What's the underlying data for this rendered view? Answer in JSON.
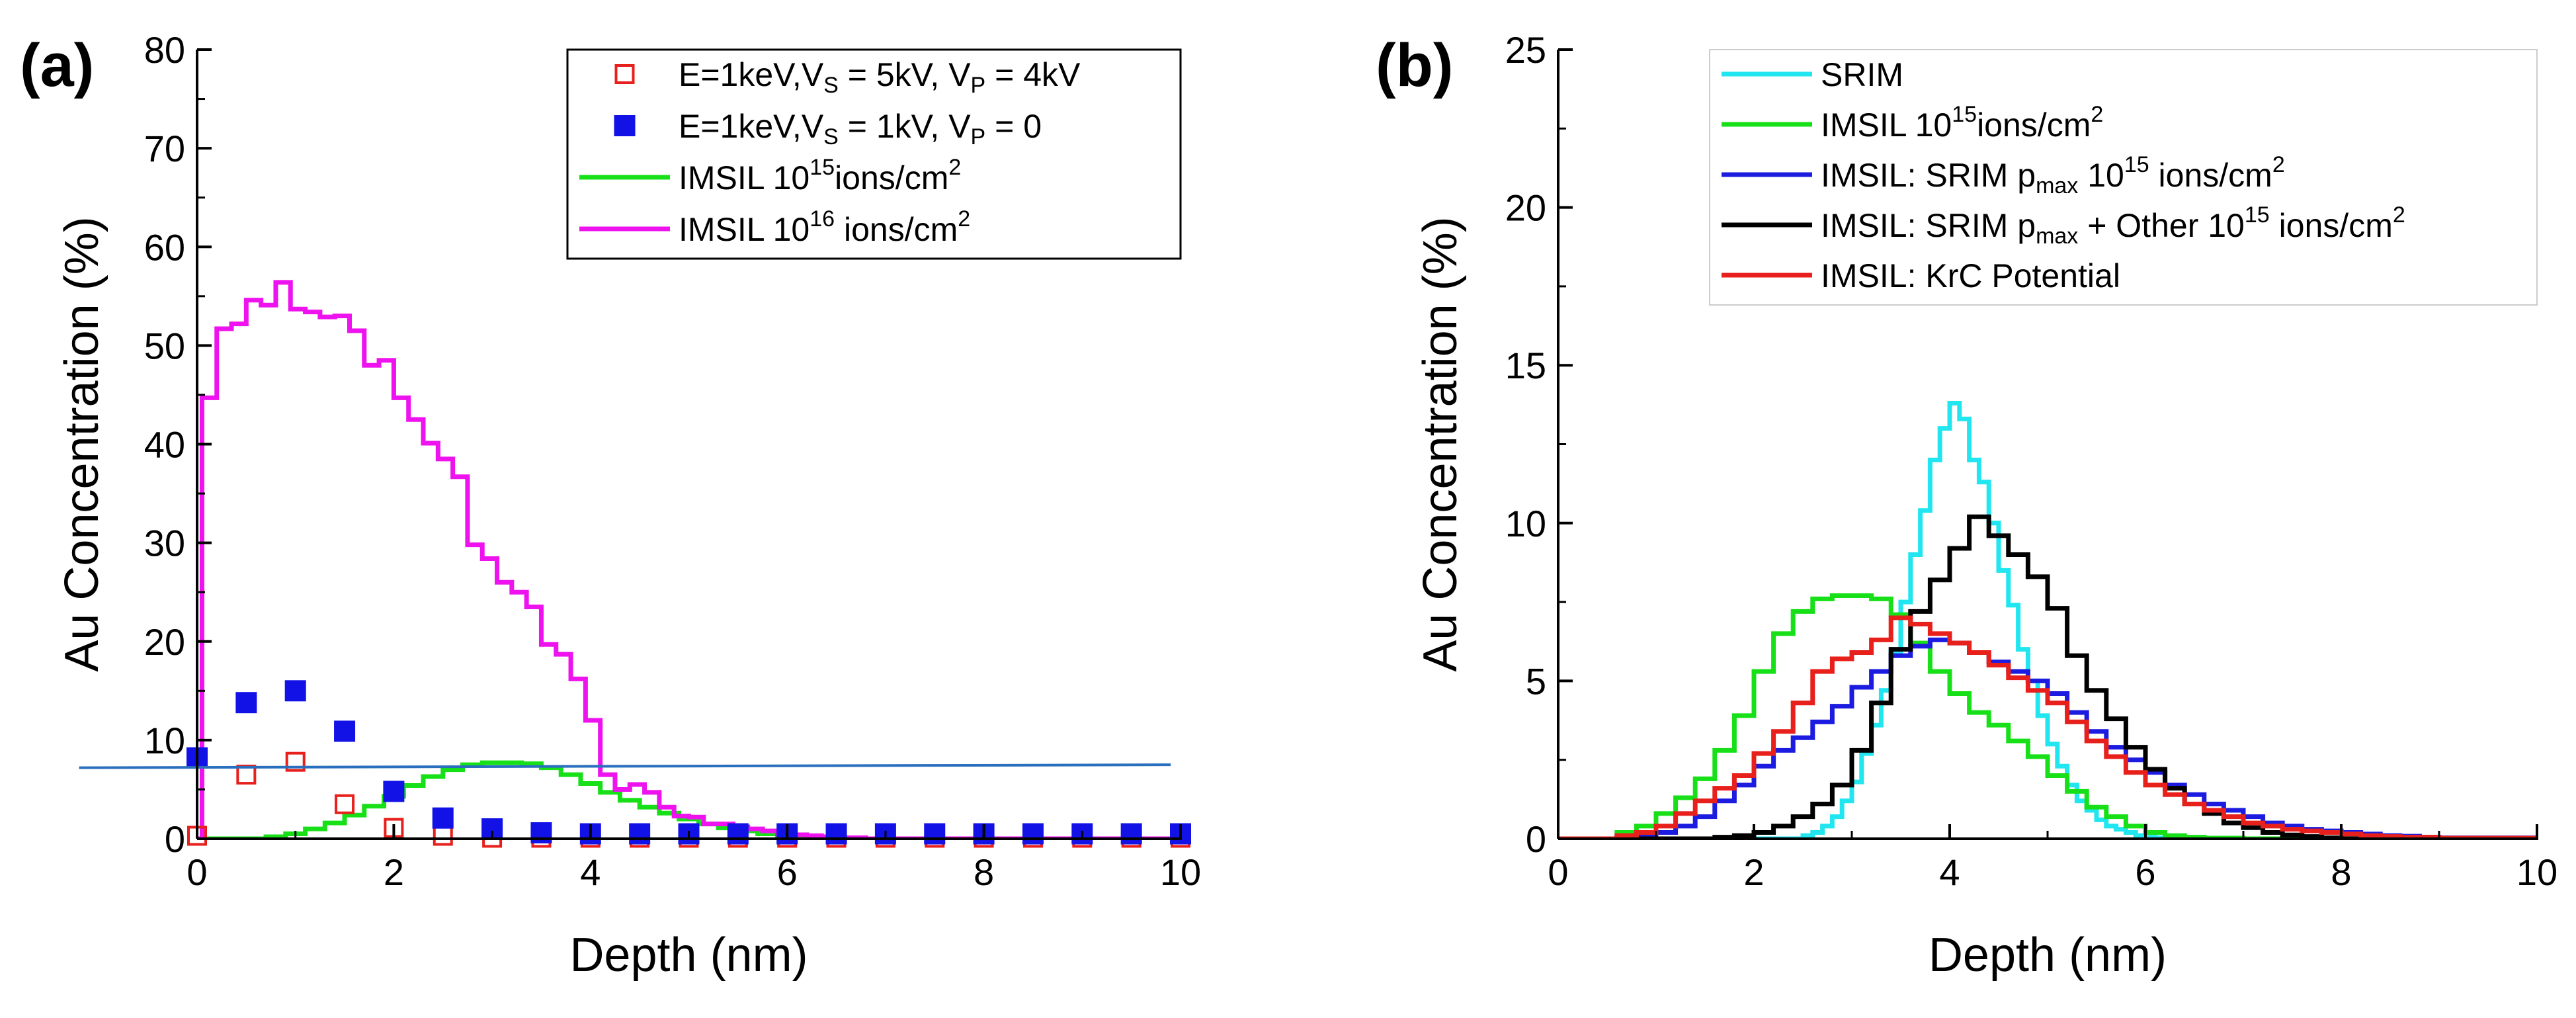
{
  "chart_data": [
    {
      "panel": "(a)",
      "type": "line",
      "xlabel": "Depth (nm)",
      "ylabel": "Au Concentration (%)",
      "xlim": [
        0,
        10
      ],
      "ylim": [
        0,
        80
      ],
      "xticks": [
        "0",
        "2",
        "4",
        "6",
        "8",
        "10"
      ],
      "yticks": [
        "0",
        "10",
        "20",
        "30",
        "40",
        "50",
        "60",
        "70",
        "80"
      ],
      "legend_position": "top-right",
      "legend": [
        {
          "text": "E=1keV,V",
          "sub": "S",
          "text2": " = 5kV, V",
          "sub2": "P",
          "text3": " = 4kV"
        },
        {
          "text": "E=1keV,V",
          "sub": "S",
          "text2": " = 1kV, V",
          "sub2": "P",
          "text3": " = 0"
        },
        {
          "text": "IMSIL 10",
          "sup": "15",
          "text2": "ions/cm",
          "sup2": "2"
        },
        {
          "text": "IMSIL 10",
          "sup": "16",
          "text2": " ions/cm",
          "sup2": "2"
        }
      ],
      "series": [
        {
          "name": "E=1keV,VS = 5kV, VP = 4kV",
          "kind": "scatter-open-square",
          "color": "#e8201c",
          "x": [
            0,
            0.5,
            1.0,
            1.5,
            2.0,
            2.5,
            3.0,
            3.5,
            4.0,
            4.5,
            5.0,
            5.5,
            6.0,
            6.5,
            7.0,
            7.5,
            8.0,
            8.5,
            9.0,
            9.5,
            10.0
          ],
          "y": [
            0.3,
            6.5,
            7.8,
            3.5,
            1.1,
            0.3,
            0.1,
            0.1,
            0.1,
            0.1,
            0.1,
            0.1,
            0.1,
            0.1,
            0.1,
            0.1,
            0.1,
            0.1,
            0.1,
            0.1,
            0.1
          ]
        },
        {
          "name": "E=1keV,VS = 1kV, VP = 0",
          "kind": "scatter-filled-square",
          "color": "#1212e6",
          "x": [
            0,
            0.5,
            1.0,
            1.5,
            2.0,
            2.5,
            3.0,
            3.5,
            4.0,
            4.5,
            5.0,
            5.5,
            6.0,
            6.5,
            7.0,
            7.5,
            8.0,
            8.5,
            9.0,
            9.5,
            10.0
          ],
          "y": [
            8.2,
            13.8,
            15.0,
            10.9,
            4.8,
            2.1,
            1.0,
            0.6,
            0.5,
            0.5,
            0.5,
            0.5,
            0.5,
            0.5,
            0.5,
            0.5,
            0.5,
            0.5,
            0.5,
            0.5,
            0.5
          ]
        },
        {
          "name": "IMSIL 10^15 ions/cm^2",
          "kind": "step",
          "color": "#18e018",
          "x": [
            0,
            0.7,
            0.9,
            1.1,
            1.3,
            1.5,
            1.7,
            1.9,
            2.1,
            2.3,
            2.5,
            2.7,
            2.9,
            3.1,
            3.3,
            3.5,
            3.7,
            3.9,
            4.1,
            4.3,
            4.5,
            4.7,
            4.9,
            5.1,
            5.3,
            5.5,
            5.7,
            5.9,
            6.1,
            6.3,
            6.5
          ],
          "y": [
            0,
            0.2,
            0.5,
            1.0,
            1.6,
            2.4,
            3.3,
            4.3,
            5.4,
            6.3,
            7.0,
            7.5,
            7.7,
            7.7,
            7.6,
            7.2,
            6.5,
            5.6,
            4.7,
            3.9,
            3.2,
            2.6,
            2.0,
            1.5,
            1.1,
            0.8,
            0.5,
            0.3,
            0.2,
            0.1,
            0
          ]
        },
        {
          "name": "IMSIL 10^16 ions/cm^2",
          "kind": "step",
          "color": "#ee12ee",
          "x": [
            0,
            0.05,
            0.2,
            0.35,
            0.5,
            0.65,
            0.8,
            0.95,
            1.1,
            1.25,
            1.4,
            1.55,
            1.7,
            1.85,
            2.0,
            2.15,
            2.3,
            2.45,
            2.6,
            2.75,
            2.9,
            3.05,
            3.2,
            3.35,
            3.5,
            3.65,
            3.8,
            3.95,
            4.1,
            4.25,
            4.4,
            4.55,
            4.7,
            4.85,
            5.0,
            5.15,
            5.3,
            5.45,
            5.6,
            5.75,
            5.9,
            6.05,
            6.2,
            6.35,
            6.5,
            6.65,
            6.8
          ],
          "y": [
            0,
            44.7,
            51.7,
            52.2,
            54.6,
            54.1,
            56.4,
            53.7,
            53.4,
            52.9,
            53.0,
            51.5,
            48.0,
            48.5,
            44.7,
            42.5,
            40.1,
            38.5,
            36.7,
            29.8,
            28.4,
            26.0,
            25.0,
            23.5,
            19.7,
            18.7,
            16.2,
            12.0,
            6.5,
            5.0,
            5.5,
            4.7,
            3.2,
            2.3,
            2.2,
            1.5,
            1.5,
            1.2,
            1.0,
            0.8,
            0.5,
            0.4,
            0.3,
            0.2,
            0.1,
            0.1,
            0
          ]
        },
        {
          "name": "reference line",
          "kind": "line",
          "color": "#2a6fbe",
          "x": [
            -1.2,
            9.9
          ],
          "y": [
            7.2,
            7.5
          ]
        }
      ]
    },
    {
      "panel": "(b)",
      "type": "line",
      "xlabel": "Depth (nm)",
      "ylabel": "Au Concentration (%)",
      "xlim": [
        0,
        10
      ],
      "ylim": [
        0,
        25
      ],
      "xticks": [
        "0",
        "2",
        "4",
        "6",
        "8",
        "10"
      ],
      "yticks": [
        "0",
        "5",
        "10",
        "15",
        "20",
        "25"
      ],
      "legend_position": "top-right",
      "legend": [
        {
          "text": "SRIM"
        },
        {
          "text": "IMSIL 10",
          "sup": "15",
          "text2": "ions/cm",
          "sup2": "2"
        },
        {
          "text": "IMSIL: SRIM p",
          "sub": "max",
          "text2": " 10",
          "sup2": "15",
          "text3": " ions/cm",
          "sup3": "2"
        },
        {
          "text": "IMSIL: SRIM p",
          "sub": "max",
          "text2": " + Other 10",
          "sup2": "15",
          "text3": " ions/cm",
          "sup3": "2"
        },
        {
          "text": "IMSIL: KrC Potential"
        }
      ],
      "series": [
        {
          "name": "SRIM",
          "kind": "step",
          "color": "#21e6f0",
          "x": [
            0,
            2.5,
            2.6,
            2.7,
            2.8,
            2.9,
            3.0,
            3.1,
            3.2,
            3.3,
            3.4,
            3.5,
            3.6,
            3.7,
            3.8,
            3.9,
            4.0,
            4.1,
            4.2,
            4.3,
            4.4,
            4.5,
            4.6,
            4.7,
            4.8,
            4.9,
            5.0,
            5.1,
            5.2,
            5.3,
            5.4,
            5.5,
            5.6,
            5.7,
            5.8,
            5.9,
            6.0,
            6.1,
            6.2,
            6.3
          ],
          "y": [
            0,
            0.1,
            0.2,
            0.4,
            0.7,
            1.2,
            1.8,
            2.7,
            3.6,
            4.7,
            5.9,
            7.5,
            9.0,
            10.4,
            12.0,
            13.0,
            13.8,
            13.3,
            12.0,
            11.3,
            10.0,
            8.5,
            7.4,
            6.0,
            5.0,
            3.9,
            3.0,
            2.3,
            1.7,
            1.2,
            0.9,
            0.6,
            0.4,
            0.3,
            0.2,
            0.1,
            0.05,
            0.03,
            0.01,
            0
          ]
        },
        {
          "name": "IMSIL 10^15 ions/cm^2",
          "kind": "step",
          "color": "#18e018",
          "x": [
            0,
            0.6,
            0.8,
            1.0,
            1.2,
            1.4,
            1.6,
            1.8,
            2.0,
            2.2,
            2.4,
            2.6,
            2.8,
            3.0,
            3.2,
            3.4,
            3.6,
            3.8,
            4.0,
            4.2,
            4.4,
            4.6,
            4.8,
            5.0,
            5.2,
            5.4,
            5.6,
            5.8,
            6.0,
            6.2,
            6.4,
            6.6,
            7.0
          ],
          "y": [
            0,
            0.2,
            0.4,
            0.8,
            1.3,
            1.9,
            2.8,
            3.9,
            5.3,
            6.5,
            7.2,
            7.6,
            7.7,
            7.7,
            7.6,
            7.1,
            6.2,
            5.3,
            4.6,
            4.0,
            3.6,
            3.1,
            2.6,
            2.0,
            1.5,
            1.0,
            0.7,
            0.4,
            0.2,
            0.1,
            0.05,
            0.02,
            0
          ]
        },
        {
          "name": "IMSIL: SRIM pmax 10^15 ions/cm^2",
          "kind": "step",
          "color": "#1c1ce0",
          "x": [
            0,
            0.6,
            0.8,
            1.0,
            1.2,
            1.4,
            1.6,
            1.8,
            2.0,
            2.2,
            2.4,
            2.6,
            2.8,
            3.0,
            3.2,
            3.4,
            3.6,
            3.8,
            4.0,
            4.2,
            4.4,
            4.6,
            4.8,
            5.0,
            5.2,
            5.4,
            5.6,
            5.8,
            6.0,
            6.2,
            6.4,
            6.6,
            6.8,
            7.0,
            7.2,
            7.4,
            7.6,
            7.8,
            8.0,
            8.2,
            8.4,
            8.6,
            8.8,
            9.0,
            10.0
          ],
          "y": [
            0,
            0.05,
            0.1,
            0.2,
            0.4,
            0.7,
            1.2,
            1.7,
            2.3,
            2.8,
            3.2,
            3.7,
            4.2,
            4.8,
            5.3,
            5.8,
            6.1,
            6.3,
            6.2,
            5.9,
            5.6,
            5.3,
            5.0,
            4.6,
            4.0,
            3.4,
            2.9,
            2.5,
            2.1,
            1.7,
            1.4,
            1.1,
            0.9,
            0.7,
            0.5,
            0.4,
            0.3,
            0.25,
            0.2,
            0.15,
            0.1,
            0.08,
            0.05,
            0.03,
            0
          ]
        },
        {
          "name": "IMSIL: SRIM pmax + Other 10^15 ions/cm^2",
          "kind": "step",
          "color": "#000000",
          "x": [
            0,
            1.6,
            1.8,
            2.0,
            2.2,
            2.4,
            2.6,
            2.8,
            3.0,
            3.2,
            3.4,
            3.6,
            3.8,
            4.0,
            4.2,
            4.4,
            4.6,
            4.8,
            5.0,
            5.2,
            5.4,
            5.6,
            5.8,
            6.0,
            6.2,
            6.4,
            6.6,
            6.8,
            7.0,
            7.2,
            7.4,
            7.6,
            7.8,
            8.0
          ],
          "y": [
            0,
            0.05,
            0.1,
            0.2,
            0.4,
            0.7,
            1.1,
            1.7,
            2.8,
            4.3,
            6.0,
            7.2,
            8.2,
            9.2,
            10.2,
            9.6,
            9.0,
            8.3,
            7.3,
            5.8,
            4.7,
            3.8,
            2.9,
            2.2,
            1.6,
            1.1,
            0.8,
            0.5,
            0.35,
            0.2,
            0.12,
            0.07,
            0.03,
            0
          ]
        },
        {
          "name": "IMSIL: KrC Potential",
          "kind": "step",
          "color": "#e8201c",
          "x": [
            0,
            0.6,
            0.8,
            1.0,
            1.2,
            1.4,
            1.6,
            1.8,
            2.0,
            2.2,
            2.4,
            2.6,
            2.8,
            3.0,
            3.2,
            3.4,
            3.6,
            3.8,
            4.0,
            4.2,
            4.4,
            4.6,
            4.8,
            5.0,
            5.2,
            5.4,
            5.6,
            5.8,
            6.0,
            6.2,
            6.4,
            6.6,
            6.8,
            7.0,
            7.2,
            7.4,
            7.6,
            7.8,
            8.0,
            8.2,
            8.4,
            8.6,
            9.0,
            10.0
          ],
          "y": [
            0,
            0.1,
            0.2,
            0.4,
            0.8,
            1.2,
            1.6,
            2.0,
            2.7,
            3.4,
            4.3,
            5.3,
            5.7,
            5.9,
            6.3,
            7.0,
            6.8,
            6.5,
            6.2,
            5.9,
            5.5,
            5.1,
            4.7,
            4.3,
            3.7,
            3.1,
            2.6,
            2.1,
            1.7,
            1.4,
            1.1,
            0.9,
            0.7,
            0.5,
            0.4,
            0.3,
            0.25,
            0.2,
            0.15,
            0.1,
            0.07,
            0.05,
            0.02,
            0
          ]
        }
      ]
    }
  ]
}
